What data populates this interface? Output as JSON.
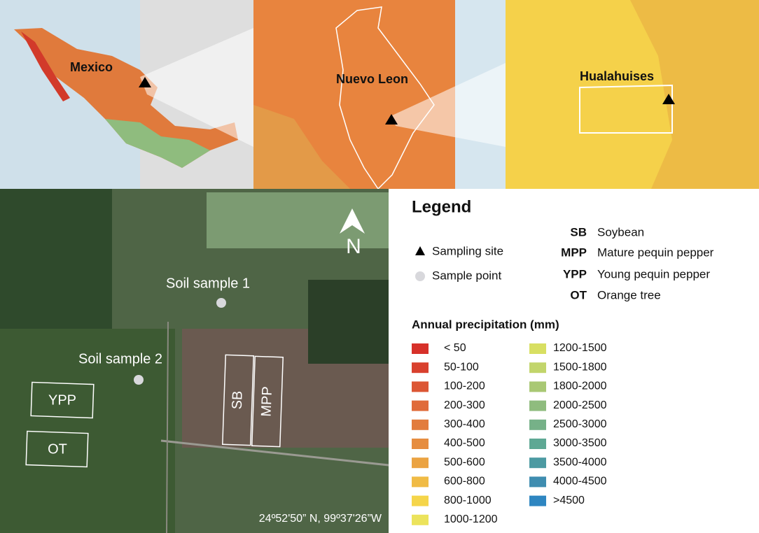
{
  "maps": {
    "mexico": "Mexico",
    "nuevo_leon": "Nuevo Leon",
    "hualahuises": "Hualahuises"
  },
  "satellite": {
    "north": "N",
    "samples": [
      "Soil sample 1",
      "Soil sample 2"
    ],
    "plots": [
      "YPP",
      "OT",
      "SB",
      "MPP"
    ],
    "coordinates": "24º52'50” N, 99º37'26”W"
  },
  "legend": {
    "title": "Legend",
    "symbols": [
      "Sampling site",
      "Sample point"
    ],
    "abbreviations": [
      {
        "code": "SB",
        "name": "Soybean"
      },
      {
        "code": "MPP",
        "name": "Mature pequin pepper"
      },
      {
        "code": "YPP",
        "name": "Young pequin pepper"
      },
      {
        "code": "OT",
        "name": "Orange tree"
      }
    ],
    "precipitation": {
      "title": "Annual precipitation (mm)",
      "classes": [
        {
          "label": "< 50",
          "color": "#d7312a"
        },
        {
          "label": "50-100",
          "color": "#d9412e"
        },
        {
          "label": "100-200",
          "color": "#dc5634"
        },
        {
          "label": "200-300",
          "color": "#e06b3a"
        },
        {
          "label": "300-400",
          "color": "#e27c3d"
        },
        {
          "label": "400-500",
          "color": "#e68d40"
        },
        {
          "label": "500-600",
          "color": "#eba342"
        },
        {
          "label": "600-800",
          "color": "#f0bb45"
        },
        {
          "label": "800-1000",
          "color": "#f5d54a"
        },
        {
          "label": "1000-1200",
          "color": "#ece35c"
        },
        {
          "label": "1200-1500",
          "color": "#d8df62"
        },
        {
          "label": "1500-1800",
          "color": "#c2d56b"
        },
        {
          "label": "1800-2000",
          "color": "#a9c874"
        },
        {
          "label": "2000-2500",
          "color": "#8fbc7e"
        },
        {
          "label": "2500-3000",
          "color": "#76b188"
        },
        {
          "label": "3000-3500",
          "color": "#5ea894"
        },
        {
          "label": "3500-4000",
          "color": "#4c9aa2"
        },
        {
          "label": "4000-4500",
          "color": "#3f8db0"
        },
        {
          "label": ">4500",
          "color": "#2e86c1"
        }
      ]
    }
  }
}
